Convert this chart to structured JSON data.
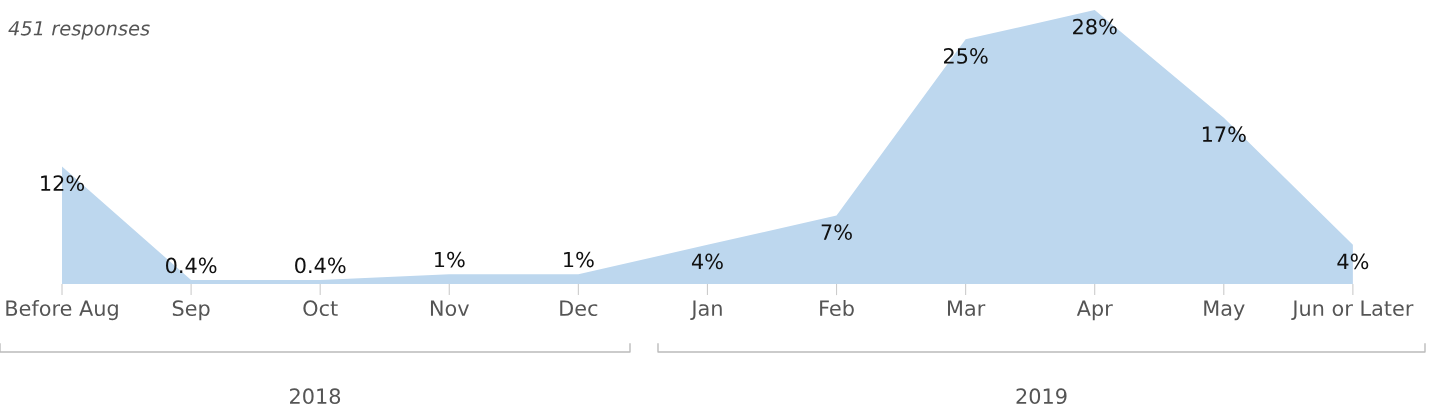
{
  "chart_data": {
    "type": "area",
    "subtitle": "451 responses",
    "categories": [
      "Before Aug",
      "Sep",
      "Oct",
      "Nov",
      "Dec",
      "Jan",
      "Feb",
      "Mar",
      "Apr",
      "May",
      "Jun or Later"
    ],
    "series": [
      {
        "color": "#bdd7ee",
        "values": [
          12,
          0.4,
          0.4,
          1,
          1,
          4,
          7,
          25,
          28,
          17,
          4
        ],
        "value_labels": [
          "12%",
          "0.4%",
          "0.4%",
          "1%",
          "1%",
          "4%",
          "7%",
          "25%",
          "28%",
          "17%",
          "4%"
        ]
      }
    ],
    "tick_labels": "x",
    "grid": false,
    "annotations": [
      "2018",
      "2019"
    ]
  }
}
